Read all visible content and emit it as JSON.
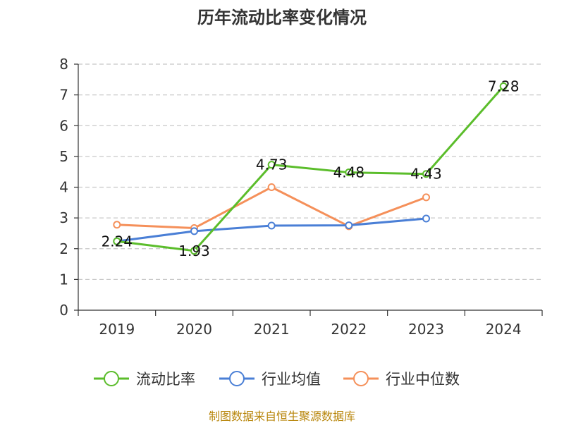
{
  "chart_data": {
    "type": "line",
    "title": "历年流动比率变化情况",
    "categories": [
      "2019",
      "2020",
      "2021",
      "2022",
      "2023",
      "2024"
    ],
    "ylim": [
      0,
      8
    ],
    "yticks": [
      0,
      1,
      2,
      3,
      4,
      5,
      6,
      7,
      8
    ],
    "grid": true,
    "legend_position": "bottom",
    "series": [
      {
        "name": "流动比率",
        "color": "#5bbd2b",
        "values": [
          2.24,
          1.93,
          4.73,
          4.48,
          4.43,
          7.28
        ],
        "labels": [
          "2.24",
          "1.93",
          "4.73",
          "4.48",
          "4.43",
          "7.28"
        ]
      },
      {
        "name": "行业均值",
        "color": "#4a7fd6",
        "values": [
          2.24,
          2.57,
          2.75,
          2.76,
          2.98,
          null
        ]
      },
      {
        "name": "行业中位数",
        "color": "#f5905a",
        "values": [
          2.78,
          2.67,
          4.0,
          2.73,
          3.67,
          null
        ]
      }
    ]
  },
  "source": "制图数据来自恒生聚源数据库"
}
